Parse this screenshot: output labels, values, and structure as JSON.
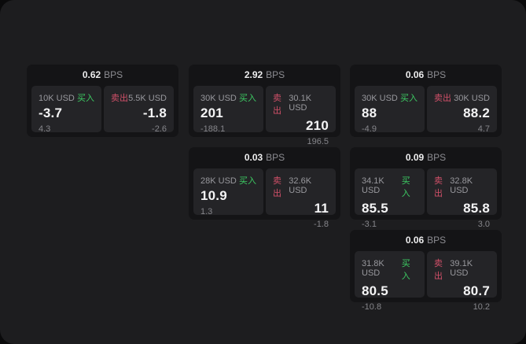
{
  "colors": {
    "buy_green": "#3dcb63",
    "sell_red": "#d15069",
    "panel_bg": "#1d1d1f",
    "card_bg": "#141416",
    "tile_bg": "#242427"
  },
  "labels": {
    "bps": "BPS",
    "buy": "买入",
    "sell": "卖出"
  },
  "cards": [
    {
      "bps": "0.62",
      "col": 1,
      "row": 1,
      "buy": {
        "size": "10K USD",
        "value": "-3.7",
        "sub": "4.3"
      },
      "sell": {
        "size": "5.5K USD",
        "value": "-1.8",
        "sub": "-2.6"
      }
    },
    {
      "bps": "2.92",
      "col": 2,
      "row": 1,
      "buy": {
        "size": "30K USD",
        "value": "201",
        "sub": "-188.1"
      },
      "sell": {
        "size": "30.1K USD",
        "value": "210",
        "sub": "196.5"
      }
    },
    {
      "bps": "0.06",
      "col": 3,
      "row": 1,
      "buy": {
        "size": "30K USD",
        "value": "88",
        "sub": "-4.9"
      },
      "sell": {
        "size": "30K USD",
        "value": "88.2",
        "sub": "4.7"
      }
    },
    {
      "bps": "0.03",
      "col": 2,
      "row": 2,
      "buy": {
        "size": "28K USD",
        "value": "10.9",
        "sub": "1.3"
      },
      "sell": {
        "size": "32.6K USD",
        "value": "11",
        "sub": "-1.8"
      }
    },
    {
      "bps": "0.09",
      "col": 3,
      "row": 2,
      "buy": {
        "size": "34.1K USD",
        "value": "85.5",
        "sub": "-3.1"
      },
      "sell": {
        "size": "32.8K USD",
        "value": "85.8",
        "sub": "3.0"
      }
    },
    {
      "bps": "0.06",
      "col": 3,
      "row": 3,
      "buy": {
        "size": "31.8K USD",
        "value": "80.5",
        "sub": "-10.8"
      },
      "sell": {
        "size": "39.1K USD",
        "value": "80.7",
        "sub": "10.2"
      }
    }
  ]
}
